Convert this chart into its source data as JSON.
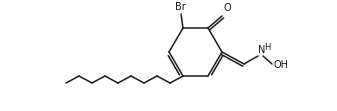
{
  "bg_color": "#ffffff",
  "line_color": "#1a1a1a",
  "line_width": 1.1,
  "font_size_label": 7.0,
  "fig_width": 3.37,
  "fig_height": 1.11,
  "dpi": 100,
  "xlim": [
    0,
    337
  ],
  "ylim": [
    111,
    0
  ]
}
